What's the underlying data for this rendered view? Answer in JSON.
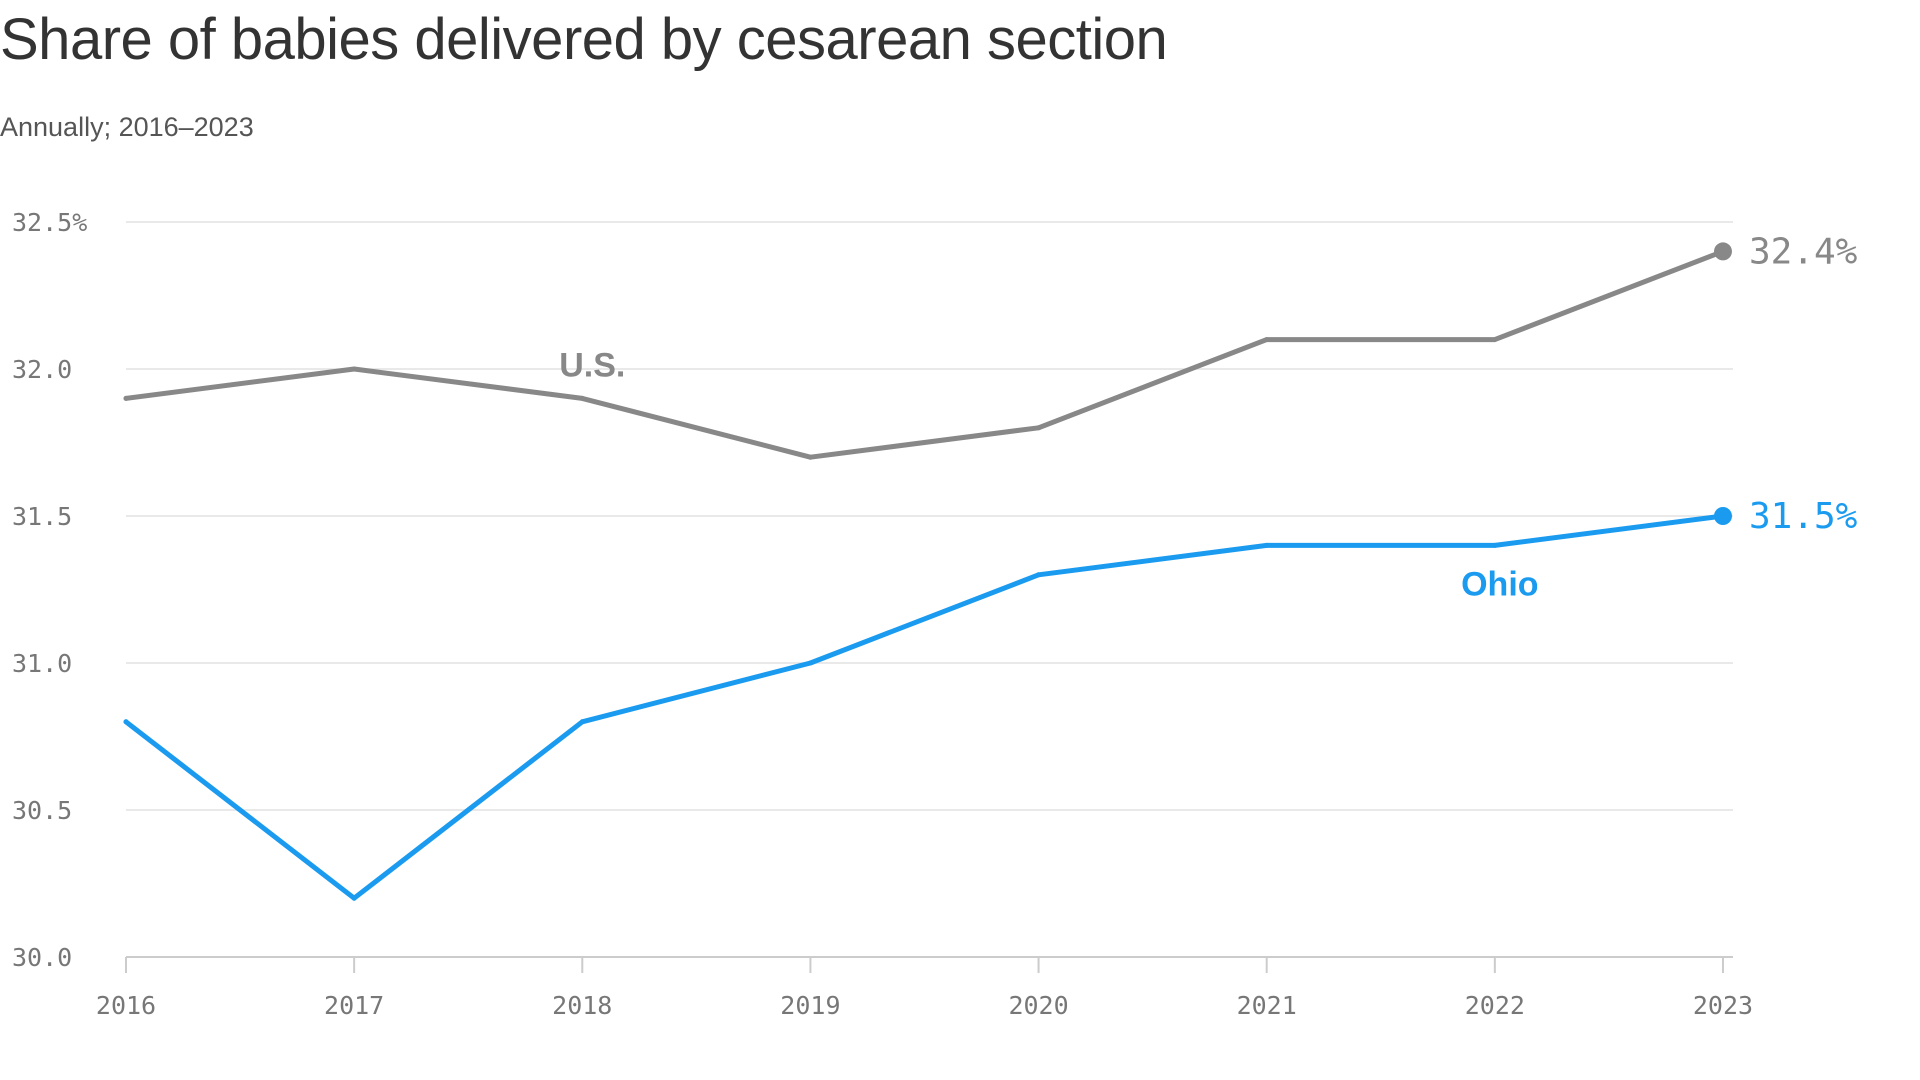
{
  "title": "Share of babies delivered by cesarean section",
  "subtitle": "Annually; 2016–2023",
  "chart_data": {
    "type": "line",
    "title": "Share of babies delivered by cesarean section",
    "subtitle": "Annually; 2016–2023",
    "xlabel": "",
    "ylabel": "",
    "categories": [
      "2016",
      "2017",
      "2018",
      "2019",
      "2020",
      "2021",
      "2022",
      "2023"
    ],
    "ylim": [
      30.0,
      32.5
    ],
    "yticks": [
      30.0,
      30.5,
      31.0,
      31.5,
      32.0,
      32.5
    ],
    "ytick_labels": [
      "30.0",
      "30.5",
      "31.0",
      "31.5",
      "32.0",
      "32.5%"
    ],
    "grid": true,
    "series": [
      {
        "name": "U.S.",
        "color": "#888888",
        "values": [
          31.9,
          32.0,
          31.9,
          31.7,
          31.8,
          32.1,
          32.1,
          32.4
        ],
        "end_label": "32.4%"
      },
      {
        "name": "Ohio",
        "color": "#1a9bf0",
        "values": [
          30.8,
          30.2,
          30.8,
          31.0,
          31.3,
          31.4,
          31.4,
          31.5
        ],
        "end_label": "31.5%"
      }
    ]
  }
}
